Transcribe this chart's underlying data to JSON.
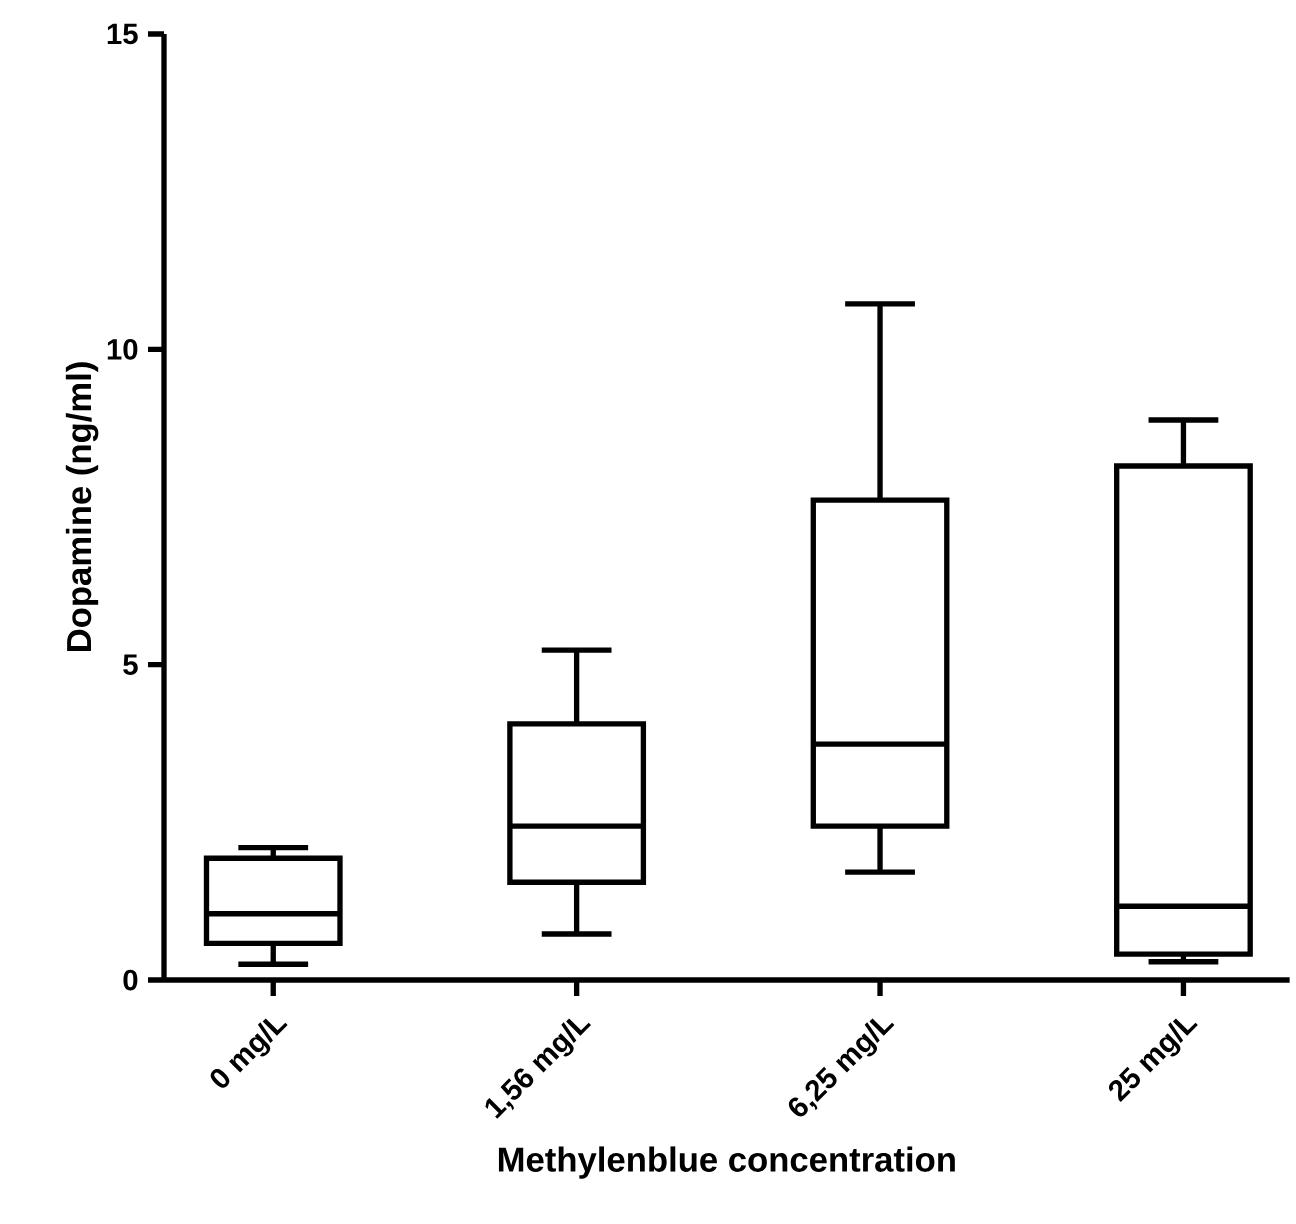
{
  "chart_data": {
    "type": "box",
    "xlabel": "Methylenblue concentration",
    "ylabel": "Dopamine (ng/ml)",
    "categories": [
      "0 mg/L",
      "1,56 mg/L",
      "6,25 mg/L",
      "25 mg/L"
    ],
    "boxes": [
      {
        "low": 0.25,
        "q1": 0.58,
        "median": 1.05,
        "q3": 1.93,
        "high": 2.1
      },
      {
        "low": 0.73,
        "q1": 1.55,
        "median": 2.44,
        "q3": 4.06,
        "high": 5.23
      },
      {
        "low": 1.71,
        "q1": 2.44,
        "median": 3.74,
        "q3": 7.61,
        "high": 10.72
      },
      {
        "low": 0.29,
        "q1": 0.41,
        "median": 1.17,
        "q3": 8.15,
        "high": 8.88
      }
    ],
    "color": "#000000",
    "ylim": [
      0,
      15
    ],
    "yticks": [
      0,
      5,
      10,
      15
    ]
  }
}
